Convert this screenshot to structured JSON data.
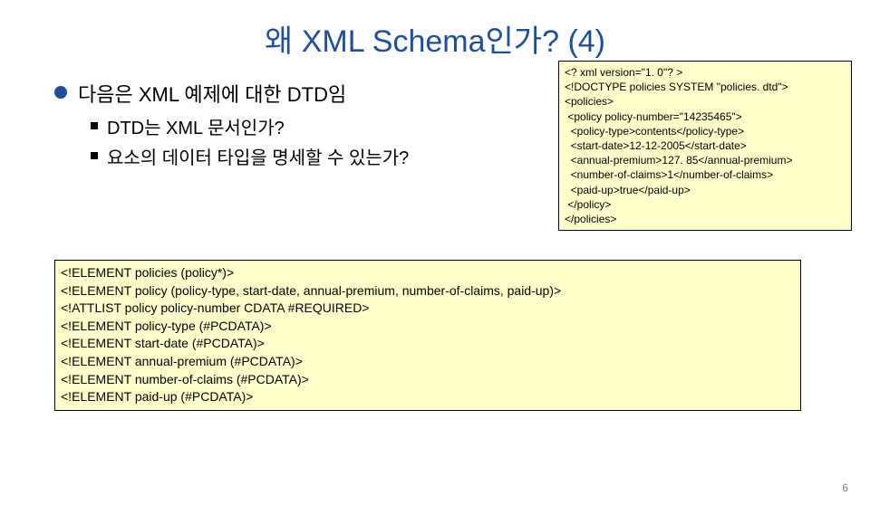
{
  "title": "왜 XML Schema인가? (4)",
  "bullet": {
    "main": "다음은 XML 예제에 대한 DTD임",
    "subs": [
      "DTD는 XML 문서인가?",
      "요소의 데이터 타입을 명세할 수 있는가?"
    ]
  },
  "xml_sample": {
    "lines": [
      "<? xml version=\"1. 0\"? >",
      "<!DOCTYPE policies SYSTEM \"policies. dtd\">",
      "<policies>",
      " <policy policy-number=\"14235465\">",
      "  <policy-type>contents</policy-type>",
      "  <start-date>12-12-2005</start-date>",
      "  <annual-premium>127. 85</annual-premium>",
      "  <number-of-claims>1</number-of-claims>",
      "  <paid-up>true</paid-up>",
      " </policy>",
      "</policies>"
    ],
    "background_color": "#ffffcc",
    "border_color": "#000000",
    "font_size": 12
  },
  "dtd_block": {
    "lines": [
      "<!ELEMENT policies (policy*)>",
      "<!ELEMENT policy (policy-type, start-date, annual-premium, number-of-claims, paid-up)>",
      "<!ATTLIST policy policy-number CDATA #REQUIRED>",
      "<!ELEMENT policy-type (#PCDATA)>",
      "<!ELEMENT start-date (#PCDATA)>",
      "<!ELEMENT annual-premium (#PCDATA)>",
      "<!ELEMENT number-of-claims (#PCDATA)>",
      "<!ELEMENT paid-up (#PCDATA)>"
    ],
    "background_color": "#ffffcc",
    "border_color": "#000000",
    "font_size": 14
  },
  "slide_number": "6",
  "colors": {
    "title": "#1f4e9c",
    "disc": "#1f4e9c",
    "text": "#000000",
    "pagenum": "#808080",
    "background": "#ffffff"
  }
}
